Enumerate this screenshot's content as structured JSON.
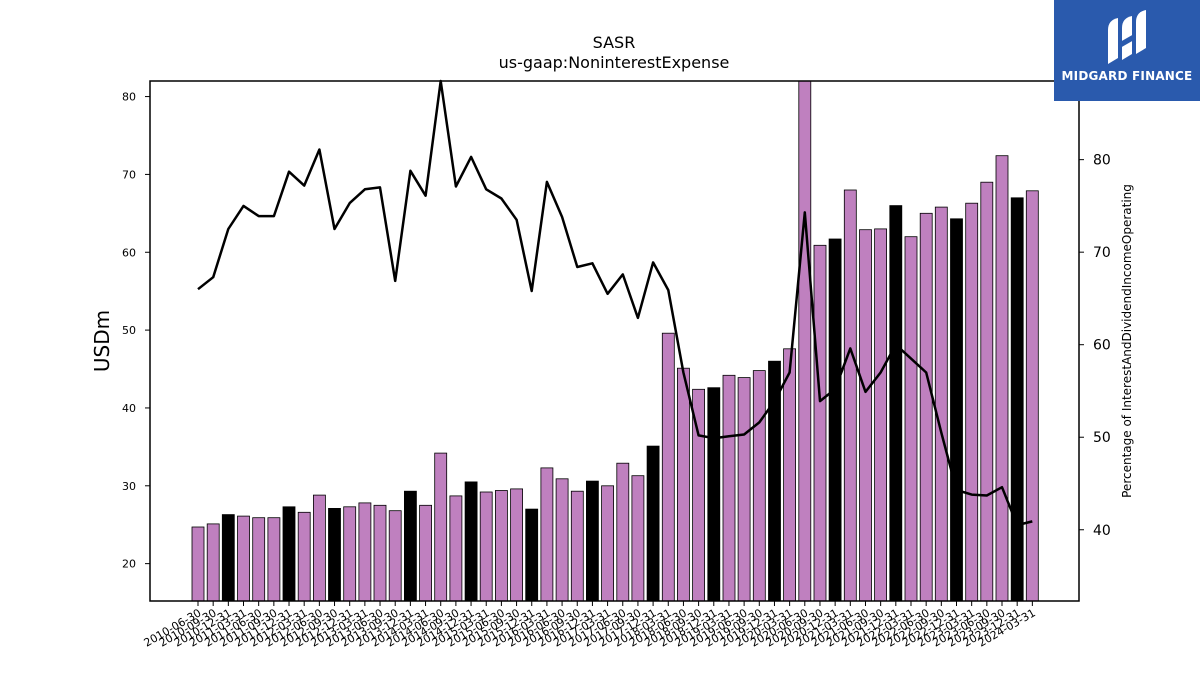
{
  "title_line1": "SASR",
  "title_line2": "us-gaap:NoninterestExpense",
  "logo_text": "MIDGARD FINANCE",
  "colors": {
    "bar": "#bf80bf",
    "bar_highlight": "#000000",
    "line": "#000000",
    "logo_bg": "#2a5aad"
  },
  "chart_data": {
    "type": "bar",
    "categories": [
      "2010-06-30",
      "2010-09-30",
      "2010-12-31",
      "2011-03-31",
      "2011-06-30",
      "2011-09-30",
      "2011-12-31",
      "2012-03-31",
      "2012-06-30",
      "2012-09-30",
      "2012-12-31",
      "2013-03-31",
      "2013-06-30",
      "2013-09-30",
      "2013-12-31",
      "2014-03-31",
      "2014-06-30",
      "2014-09-30",
      "2014-12-31",
      "2015-03-31",
      "2015-06-30",
      "2015-09-30",
      "2015-12-31",
      "2016-03-31",
      "2016-06-30",
      "2016-09-30",
      "2016-12-31",
      "2017-03-31",
      "2017-06-30",
      "2017-09-30",
      "2017-12-31",
      "2018-03-31",
      "2018-06-30",
      "2018-09-30",
      "2018-12-31",
      "2019-03-31",
      "2019-06-30",
      "2019-09-30",
      "2019-12-31",
      "2020-03-31",
      "2020-06-30",
      "2020-09-30",
      "2020-12-31",
      "2021-03-31",
      "2021-06-30",
      "2021-09-30",
      "2021-12-31",
      "2022-03-31",
      "2022-06-30",
      "2022-09-30",
      "2022-12-31",
      "2023-03-31",
      "2023-06-30",
      "2023-09-30",
      "2023-12-31",
      "2024-03-31"
    ],
    "tick_labels": [
      "2010-06-30",
      "2010-09-30",
      "2010-12-31",
      "2011-03-31",
      "2011-06-30",
      "2011-09-30",
      "2011-12-31",
      "2012-03-31",
      "2012-06-30",
      "2012-09-30",
      "2012-12-31",
      "2013-03-31",
      "2013-06-30",
      "2013-09-30",
      "2013-12-31",
      "2014-03-31",
      "2014-06-30",
      "2014-09-30",
      "2014-12-31",
      "2015-03-31",
      "2015-06-30",
      "2015-09-30",
      "2015-12-31",
      "2016-03-31",
      "2016-06-30",
      "2016-09-30",
      "2016-12-31",
      "2017-03-31",
      "2017-06-30",
      "2017-09-30",
      "2017-12-31",
      "2018-03-31",
      "2018-06-30",
      "2018-09-30",
      "2018-12-31",
      "2019-03-31",
      "2019-06-30",
      "2019-09-30",
      "2019-12-31",
      "2020-03-31",
      "2020-06-30",
      "2020-09-30",
      "2020-12-31",
      "2021-03-31",
      "2021-06-30",
      "2021-09-30",
      "2021-12-31",
      "2022-03-31",
      "2022-06-30",
      "2022-09-30",
      "2022-12-31",
      "2023-03-31",
      "2023-06-30",
      "2023-09-30",
      "2023-12-31",
      "2024-03-31"
    ],
    "series": [
      {
        "axis": "left",
        "kind": "bar",
        "values": [
          24.7,
          25.1,
          26.3,
          26.1,
          25.9,
          25.9,
          27.3,
          26.6,
          28.8,
          27.1,
          27.3,
          27.8,
          27.5,
          26.8,
          29.3,
          27.5,
          34.2,
          28.7,
          30.5,
          29.2,
          29.4,
          29.6,
          27.0,
          32.3,
          30.9,
          29.3,
          30.6,
          30.0,
          32.9,
          31.3,
          35.1,
          49.6,
          45.1,
          42.4,
          42.6,
          44.2,
          43.9,
          44.8,
          46.0,
          47.6,
          82.0,
          60.9,
          61.7,
          68.0,
          62.9,
          63.0,
          66.0,
          62.0,
          65.0,
          65.8,
          64.3,
          66.3,
          69.0,
          72.4,
          67.0,
          67.9
        ],
        "highlight": [
          false,
          false,
          true,
          false,
          false,
          false,
          true,
          false,
          false,
          true,
          false,
          false,
          false,
          false,
          true,
          false,
          false,
          false,
          true,
          false,
          false,
          false,
          true,
          false,
          false,
          false,
          true,
          false,
          false,
          false,
          true,
          false,
          false,
          false,
          true,
          false,
          false,
          false,
          true,
          false,
          false,
          false,
          true,
          false,
          false,
          false,
          true,
          false,
          false,
          false,
          true,
          false,
          false,
          false,
          true,
          false
        ]
      },
      {
        "axis": "right",
        "kind": "line",
        "values": [
          66.0,
          67.3,
          72.5,
          75.0,
          73.9,
          73.9,
          78.7,
          77.2,
          81.1,
          72.5,
          75.3,
          76.8,
          77.0,
          66.9,
          78.8,
          76.1,
          88.5,
          77.1,
          80.3,
          76.8,
          75.8,
          73.5,
          65.8,
          77.6,
          73.8,
          68.4,
          68.8,
          65.5,
          67.6,
          62.9,
          68.9,
          65.9,
          57.0,
          50.2,
          49.9,
          50.1,
          50.3,
          51.6,
          53.9,
          57.0,
          74.3,
          53.9,
          55.2,
          59.6,
          54.9,
          57.0,
          60.0,
          58.5,
          57.0,
          50.5,
          44.3,
          43.8,
          43.7,
          44.6,
          40.5,
          40.9
        ]
      }
    ],
    "ylabel": "USDm",
    "y2label": "Percentage of InterestAndDividendIncomeOperating",
    "ylim": [
      15.2,
      82
    ],
    "y2lim": [
      32.3,
      88.5
    ],
    "yticks": [
      20,
      30,
      40,
      50,
      60,
      70,
      80
    ],
    "y2ticks": [
      40,
      50,
      60,
      70,
      80
    ],
    "grid": false
  }
}
